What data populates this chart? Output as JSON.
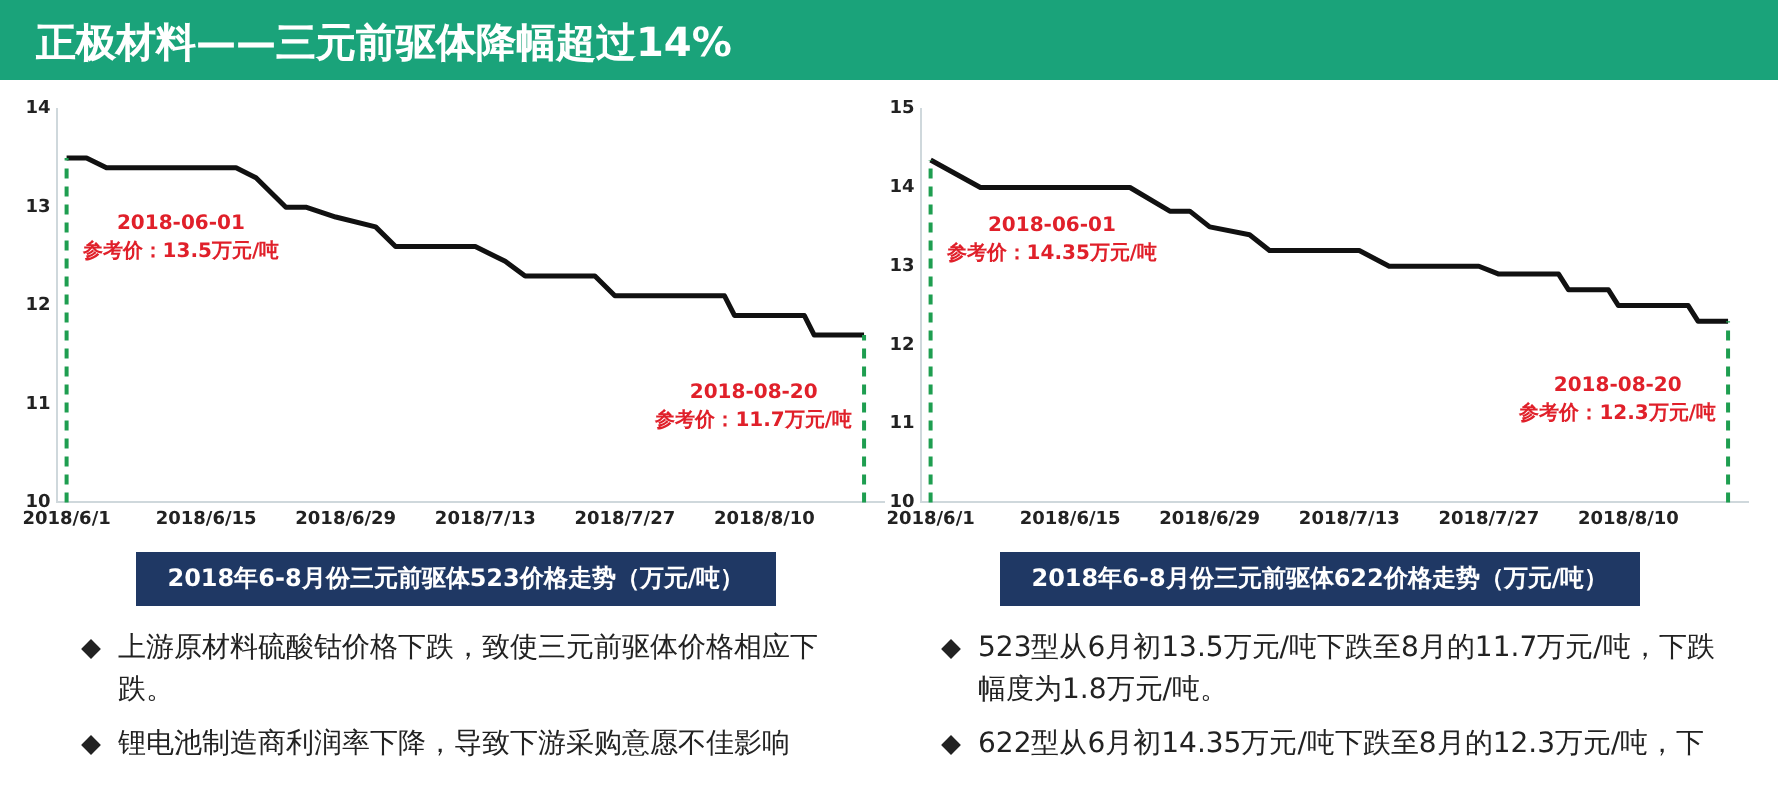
{
  "chart_data": [
    {
      "type": "line",
      "title": "2018年6-8月份三元前驱体523价格走势（万元/吨）",
      "color": "#111111",
      "x": [
        "2018-06-01",
        "2018-06-03",
        "2018-06-05",
        "2018-06-18",
        "2018-06-20",
        "2018-06-23",
        "2018-06-25",
        "2018-06-28",
        "2018-07-02",
        "2018-07-04",
        "2018-07-12",
        "2018-07-15",
        "2018-07-17",
        "2018-07-24",
        "2018-07-26",
        "2018-08-06",
        "2018-08-07",
        "2018-08-14",
        "2018-08-15",
        "2018-08-20"
      ],
      "values": [
        13.5,
        13.5,
        13.4,
        13.4,
        13.3,
        13.0,
        13.0,
        12.9,
        12.8,
        12.6,
        12.6,
        12.45,
        12.3,
        12.3,
        12.1,
        12.1,
        11.9,
        11.9,
        11.7,
        11.7
      ],
      "xlim": [
        "2018-05-31",
        "2018-08-22"
      ],
      "ylim": [
        10,
        14
      ],
      "yticks": [
        10,
        11,
        12,
        13,
        14
      ],
      "xticks": [
        {
          "value": "2018-06-01",
          "label": "2018/6/1"
        },
        {
          "value": "2018-06-15",
          "label": "2018/6/15"
        },
        {
          "value": "2018-06-29",
          "label": "2018/6/29"
        },
        {
          "value": "2018-07-13",
          "label": "2018/7/13"
        },
        {
          "value": "2018-07-27",
          "label": "2018/7/27"
        },
        {
          "value": "2018-08-10",
          "label": "2018/8/10"
        }
      ],
      "ref_lines": [
        {
          "axis": "x",
          "value": "2018-06-01",
          "color": "#1e9e50",
          "line_style": "dashed",
          "label": "2018-06-01\n参考价：13.5万元/吨"
        },
        {
          "axis": "x",
          "value": "2018-08-20",
          "color": "#1e9e50",
          "line_style": "dashed",
          "label": "2018-08-20\n参考价：11.7万元/吨"
        }
      ]
    },
    {
      "type": "line",
      "title": "2018年6-8月份三元前驱体622价格走势（万元/吨）",
      "color": "#111111",
      "x": [
        "2018-06-01",
        "2018-06-06",
        "2018-06-21",
        "2018-06-25",
        "2018-06-27",
        "2018-06-29",
        "2018-07-03",
        "2018-07-05",
        "2018-07-14",
        "2018-07-17",
        "2018-07-26",
        "2018-07-28",
        "2018-08-03",
        "2018-08-04",
        "2018-08-08",
        "2018-08-09",
        "2018-08-16",
        "2018-08-17",
        "2018-08-20"
      ],
      "values": [
        14.35,
        14.0,
        14.0,
        13.7,
        13.7,
        13.5,
        13.4,
        13.2,
        13.2,
        13.0,
        13.0,
        12.9,
        12.9,
        12.7,
        12.7,
        12.5,
        12.5,
        12.3,
        12.3
      ],
      "xlim": [
        "2018-05-31",
        "2018-08-22"
      ],
      "ylim": [
        10,
        15
      ],
      "yticks": [
        10,
        11,
        12,
        13,
        14,
        15
      ],
      "xticks": [
        {
          "value": "2018-06-01",
          "label": "2018/6/1"
        },
        {
          "value": "2018-06-15",
          "label": "2018/6/15"
        },
        {
          "value": "2018-06-29",
          "label": "2018/6/29"
        },
        {
          "value": "2018-07-13",
          "label": "2018/7/13"
        },
        {
          "value": "2018-07-27",
          "label": "2018/7/27"
        },
        {
          "value": "2018-08-10",
          "label": "2018/8/10"
        }
      ],
      "ref_lines": [
        {
          "axis": "x",
          "value": "2018-06-01",
          "color": "#1e9e50",
          "line_style": "dashed",
          "label": "2018-06-01\n参考价：14.35万元/吨"
        },
        {
          "axis": "x",
          "value": "2018-08-20",
          "color": "#1e9e50",
          "line_style": "dashed",
          "label": "2018-08-20\n参考价：12.3万元/吨"
        }
      ]
    },
    {
      "type": "other",
      "title": "正极材料——三元前驱体降幅超过14%",
      "annotations": [
        "上游原材料硫酸钴价格下跌，致使三元前驱体价格相应下跌。",
        "锂电池制造商利润率下降，导致下游采购意愿不佳影响",
        "523型从6月初13.5万元/吨下跌至8月的11.7万元/吨，下跌幅度为1.8万元/吨。",
        "622型从6月初14.35万元/吨下跌至8月的12.3万元/吨，下"
      ]
    }
  ]
}
